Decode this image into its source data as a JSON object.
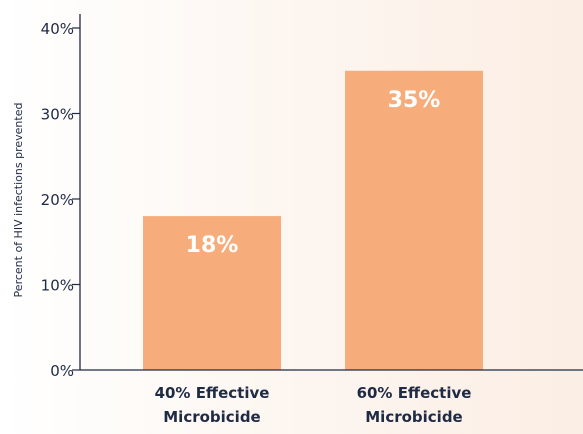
{
  "chart_data": {
    "type": "bar",
    "categories": [
      [
        "40% Effective",
        "Microbicide"
      ],
      [
        "60% Effective",
        "Microbicide"
      ]
    ],
    "values": [
      18,
      35
    ],
    "value_labels": [
      "18%",
      "35%"
    ],
    "title": "",
    "xlabel": "",
    "ylabel": "Percent of HIV infections prevented",
    "ylim": [
      0,
      40
    ],
    "yticks": [
      0,
      10,
      20,
      30,
      40
    ],
    "ytick_labels": [
      "0%",
      "10%",
      "20%",
      "30%",
      "40%"
    ],
    "grid": false,
    "legend": "none"
  },
  "colors": {
    "bar": "#f6ad7b",
    "axis": "#1f2a44",
    "text": "#1f2a44",
    "bar_label": "#ffffff"
  }
}
